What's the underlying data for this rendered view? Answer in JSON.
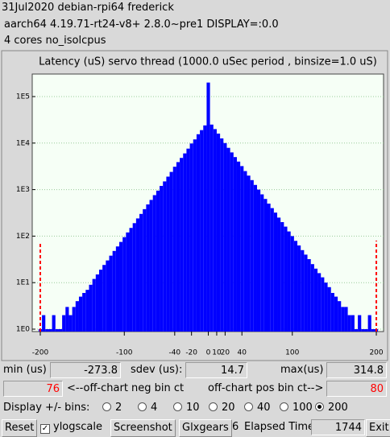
{
  "header": {
    "lines": [
      "31Jul2020 debian-rpi64 frederick",
      "aarch64  4.19.71-rt24-v8+  2.8.0~pre1  DISPLAY=:0.0",
      "4 cores  no_isolcpus"
    ]
  },
  "chart_data": {
    "type": "histogram",
    "title": "Latency (uS) servo thread (1000.0 uSec period , binsize=1.0 uS)",
    "x": [
      -200,
      -196,
      -192,
      -188,
      -184,
      -180,
      -176,
      -172,
      -168,
      -164,
      -160,
      -156,
      -152,
      -148,
      -144,
      -140,
      -136,
      -132,
      -128,
      -124,
      -120,
      -116,
      -112,
      -108,
      -104,
      -100,
      -96,
      -92,
      -88,
      -84,
      -80,
      -76,
      -72,
      -68,
      -64,
      -60,
      -56,
      -52,
      -48,
      -44,
      -40,
      -36,
      -32,
      -28,
      -24,
      -20,
      -16,
      -12,
      -8,
      -4,
      0,
      4,
      8,
      12,
      16,
      20,
      24,
      28,
      32,
      36,
      40,
      44,
      48,
      52,
      56,
      60,
      64,
      68,
      72,
      76,
      80,
      84,
      88,
      92,
      96,
      100,
      104,
      108,
      112,
      116,
      120,
      124,
      128,
      132,
      136,
      140,
      144,
      148,
      152,
      156,
      160,
      164,
      168,
      172,
      176,
      180,
      184,
      188,
      192,
      196,
      200
    ],
    "values": [
      1,
      2,
      1,
      1,
      2,
      1,
      1,
      2,
      3,
      2,
      3,
      4,
      5,
      6,
      7,
      9,
      12,
      15,
      19,
      24,
      30,
      38,
      48,
      60,
      75,
      95,
      120,
      150,
      190,
      240,
      300,
      380,
      480,
      600,
      760,
      950,
      1200,
      1500,
      1900,
      2400,
      3100,
      3900,
      4800,
      6000,
      7600,
      9800,
      12000,
      15500,
      19000,
      24000,
      200000,
      25000,
      20000,
      16000,
      12600,
      10000,
      7900,
      6300,
      5000,
      4000,
      3200,
      2500,
      2000,
      1600,
      1260,
      1000,
      790,
      630,
      500,
      400,
      320,
      250,
      200,
      160,
      126,
      100,
      79,
      63,
      50,
      40,
      32,
      25,
      20,
      16,
      13,
      10,
      8,
      6,
      5,
      4,
      3,
      3,
      2,
      2,
      1,
      2,
      1,
      1,
      2,
      1,
      1
    ],
    "color": "#0000ff",
    "log_y": true,
    "grid": true,
    "xlim": [
      -209.6,
      208.6
    ],
    "ylim": [
      0.887,
      305000
    ],
    "xticks": [
      -200,
      -100,
      -40,
      -20,
      0,
      10,
      20,
      40,
      100,
      200
    ],
    "yticks": [
      {
        "value": 1,
        "label": "1E0"
      },
      {
        "value": 10,
        "label": "1E1"
      },
      {
        "value": 100,
        "label": "1E2"
      },
      {
        "value": 1000,
        "label": "1E3"
      },
      {
        "value": 10000,
        "label": "1E4"
      },
      {
        "value": 100000,
        "label": "1E5"
      }
    ],
    "offchart_color": "#ff0000"
  },
  "stats": {
    "min_label": "min (us)",
    "min": -273.8,
    "sdev_label": "sdev (us):",
    "sdev": 14.7,
    "max_label": "max(us)",
    "max": 314.8,
    "neg_count": 76,
    "neg_label": "<--off-chart neg bin ct",
    "pos_label": "off-chart pos bin ct-->",
    "pos_count": 80
  },
  "controls": {
    "bins_label": "Display +/- bins:",
    "bins_options": [
      2,
      4,
      10,
      20,
      40,
      100,
      200
    ],
    "bins_selected": 200,
    "reset": "Reset",
    "ylogscale": "ylogscale",
    "ylogscale_checked": true,
    "screenshot": "Screenshot",
    "glxgears": "Glxgears",
    "glxgears_count": 6,
    "elapsed_label": "Elapsed Time:",
    "elapsed": 1744,
    "exit": "Exit"
  }
}
